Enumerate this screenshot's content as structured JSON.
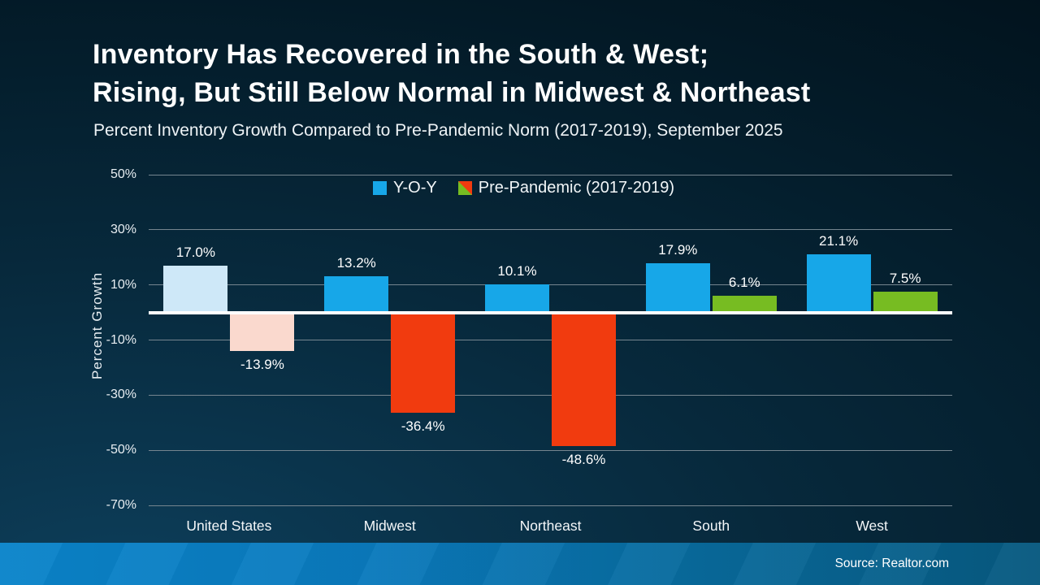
{
  "title": {
    "line1": "Inventory Has Recovered in the South & West;",
    "line2": "Rising, But Still Below Normal in Midwest & Northeast"
  },
  "subtitle": "Percent Inventory Growth Compared to Pre-Pandemic Norm (2017-2019), September 2025",
  "footer": {
    "source": "Source: Realtor.com"
  },
  "chart_data": {
    "type": "bar",
    "title": "Inventory Has Recovered in the South & West; Rising, But Still Below Normal in Midwest & Northeast",
    "subtitle": "Percent Inventory Growth Compared to Pre-Pandemic Norm (2017-2019), September 2025",
    "categories": [
      "United States",
      "Midwest",
      "Northeast",
      "South",
      "West"
    ],
    "series": [
      {
        "name": "Y-O-Y",
        "values": [
          17.0,
          13.2,
          10.1,
          17.9,
          21.1
        ],
        "labels": [
          "17.0%",
          "13.2%",
          "10.1%",
          "17.9%",
          "21.1%"
        ],
        "colors": [
          "#CEE8F8",
          "#17A7E8",
          "#17A7E8",
          "#17A7E8",
          "#17A7E8"
        ]
      },
      {
        "name": "Pre-Pandemic (2017-2019)",
        "values": [
          -13.9,
          -36.4,
          -48.6,
          6.1,
          7.5
        ],
        "labels": [
          "-13.9%",
          "-36.4%",
          "-48.6%",
          "6.1%",
          "7.5%"
        ],
        "colors": [
          "#FAD9CE",
          "#F13B0F",
          "#F13B0F",
          "#77BC22",
          "#77BC22"
        ]
      }
    ],
    "xlabel": "",
    "ylabel": "Percent Growth",
    "ylim": [
      -70,
      50
    ],
    "yticks": [
      50,
      30,
      10,
      -10,
      -30,
      -50,
      -70
    ],
    "ytick_labels": [
      "50%",
      "30%",
      "10%",
      "-10%",
      "-30%",
      "-50%",
      "-70%"
    ],
    "grid": true,
    "legend_position": "top-center",
    "legend": [
      {
        "label": "Y-O-Y",
        "swatch": "#17A7E8"
      },
      {
        "label": "Pre-Pandemic (2017-2019)",
        "swatch_split": [
          "#77BC22",
          "#F13B0F"
        ]
      }
    ]
  },
  "colors": {
    "background_top_right": "#02121C",
    "background_bottom_left": "#0D3E5A",
    "bar_blue": "#17A7E8",
    "bar_blue_muted": "#CEE8F8",
    "bar_red": "#F13B0F",
    "bar_red_muted": "#FAD9CE",
    "bar_green": "#77BC22",
    "gridline": "#75858F",
    "zero_line": "#FFFFFF",
    "footer_left": "#0A84CA",
    "footer_right": "#07597F"
  }
}
